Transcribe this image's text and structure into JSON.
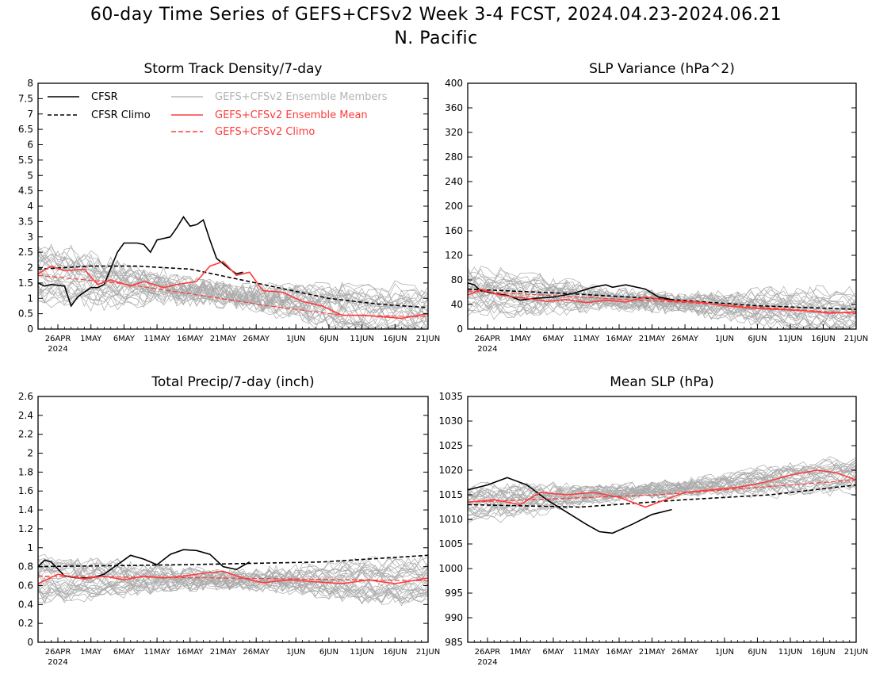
{
  "figure": {
    "title_line1": "60-day Time Series of GEFS+CFSv2 Week 3-4 FCST, 2024.04.23-2024.06.21",
    "title_line2": "N. Pacific",
    "x_axis": {
      "start_date": "2024-04-23",
      "end_date": "2024-06-21",
      "tick_labels": [
        "26APR",
        "1MAY",
        "6MAY",
        "11MAY",
        "16MAY",
        "21MAY",
        "26MAY",
        "1JUN",
        "6JUN",
        "11JUN",
        "16JUN",
        "21JUN"
      ],
      "tick_dates": [
        "2024-04-26",
        "2024-05-01",
        "2024-05-06",
        "2024-05-11",
        "2024-05-16",
        "2024-05-21",
        "2024-05-26",
        "2024-06-01",
        "2024-06-06",
        "2024-06-11",
        "2024-06-16",
        "2024-06-21"
      ],
      "year_label": "2024"
    },
    "legend": {
      "cfsr": "CFSR",
      "cfsr_climo": "CFSR Climo",
      "members": "GEFS+CFSv2 Ensemble Members",
      "ens_mean": "GEFS+CFSv2 Ensemble Mean",
      "gefs_climo": "GEFS+CFSv2 Climo"
    },
    "colors": {
      "cfsr": "#000000",
      "members": "#aaaaaa",
      "ens_mean": "#ff3b3b",
      "member_legend_text": "#b4b4b4"
    }
  },
  "chart_data": [
    {
      "type": "line",
      "title": "Storm Track Density/7-day",
      "ylim": [
        0,
        8
      ],
      "yticks": [
        0,
        0.5,
        1,
        1.5,
        2,
        2.5,
        3,
        3.5,
        4,
        4.5,
        5,
        5.5,
        6,
        6.5,
        7,
        7.5,
        8
      ],
      "ytick_labels": [
        "0",
        "0.5",
        "1",
        "1.5",
        "2",
        "2.5",
        "3",
        "3.5",
        "4",
        "4.5",
        "5",
        "5.5",
        "6",
        "6.5",
        "7",
        "7.5",
        "8"
      ],
      "members": {
        "count": 30,
        "start": 1.8,
        "end": 0.4,
        "spread": 1.0
      },
      "series": [
        {
          "name": "CFSR",
          "x": [
            "2024-04-23",
            "2024-04-24",
            "2024-04-25",
            "2024-04-27",
            "2024-04-28",
            "2024-04-29",
            "2024-05-01",
            "2024-05-02",
            "2024-05-03",
            "2024-05-05",
            "2024-05-06",
            "2024-05-08",
            "2024-05-09",
            "2024-05-10",
            "2024-05-11",
            "2024-05-13",
            "2024-05-14",
            "2024-05-15",
            "2024-05-16",
            "2024-05-17",
            "2024-05-18",
            "2024-05-19",
            "2024-05-20",
            "2024-05-22",
            "2024-05-23",
            "2024-05-24"
          ],
          "y": [
            1.5,
            1.4,
            1.45,
            1.4,
            0.75,
            1.05,
            1.35,
            1.35,
            1.45,
            2.5,
            2.8,
            2.8,
            2.75,
            2.5,
            2.9,
            3.0,
            3.3,
            3.65,
            3.35,
            3.4,
            3.55,
            2.9,
            2.3,
            1.95,
            1.8,
            1.85
          ]
        },
        {
          "name": "CFSR Climo",
          "x": [
            "2024-04-23",
            "2024-05-01",
            "2024-05-08",
            "2024-05-16",
            "2024-05-26",
            "2024-06-06",
            "2024-06-14",
            "2024-06-21"
          ],
          "y": [
            1.95,
            2.05,
            2.05,
            1.95,
            1.5,
            1.0,
            0.8,
            0.7
          ]
        },
        {
          "name": "GEFS+CFSv2 Ensemble Mean",
          "x": [
            "2024-04-23",
            "2024-04-25",
            "2024-04-27",
            "2024-04-30",
            "2024-05-02",
            "2024-05-04",
            "2024-05-07",
            "2024-05-09",
            "2024-05-12",
            "2024-05-14",
            "2024-05-17",
            "2024-05-19",
            "2024-05-21",
            "2024-05-23",
            "2024-05-25",
            "2024-05-27",
            "2024-05-30",
            "2024-06-02",
            "2024-06-05",
            "2024-06-08",
            "2024-06-11",
            "2024-06-14",
            "2024-06-17",
            "2024-06-21"
          ],
          "y": [
            1.8,
            2.05,
            1.9,
            1.95,
            1.45,
            1.6,
            1.4,
            1.55,
            1.35,
            1.45,
            1.55,
            2.05,
            2.2,
            1.75,
            1.85,
            1.25,
            1.2,
            0.9,
            0.75,
            0.45,
            0.45,
            0.4,
            0.35,
            0.5
          ]
        },
        {
          "name": "GEFS+CFSv2 Climo",
          "x": [
            "2024-04-23",
            "2024-05-05",
            "2024-05-16",
            "2024-05-28",
            "2024-06-08",
            "2024-06-21"
          ],
          "y": [
            1.75,
            1.5,
            1.15,
            0.75,
            0.45,
            0.4
          ]
        }
      ],
      "show_legend": true,
      "grid": false
    },
    {
      "type": "line",
      "title": "SLP Variance (hPa^2)",
      "ylim": [
        0,
        400
      ],
      "yticks": [
        0,
        40,
        80,
        120,
        160,
        200,
        240,
        280,
        320,
        360,
        400
      ],
      "ytick_labels": [
        "0",
        "40",
        "80",
        "120",
        "160",
        "200",
        "240",
        "280",
        "320",
        "360",
        "400"
      ],
      "members": {
        "count": 30,
        "start": 62,
        "end": 25,
        "spread": 40
      },
      "series": [
        {
          "name": "CFSR",
          "x": [
            "2024-04-23",
            "2024-04-24",
            "2024-04-25",
            "2024-04-27",
            "2024-04-29",
            "2024-05-01",
            "2024-05-03",
            "2024-05-06",
            "2024-05-09",
            "2024-05-12",
            "2024-05-14",
            "2024-05-15",
            "2024-05-17",
            "2024-05-20",
            "2024-05-22",
            "2024-05-24"
          ],
          "y": [
            75,
            72,
            62,
            58,
            55,
            47,
            50,
            52,
            58,
            68,
            72,
            68,
            72,
            65,
            52,
            48
          ]
        },
        {
          "name": "CFSR Climo",
          "x": [
            "2024-04-23",
            "2024-05-08",
            "2024-05-24",
            "2024-06-06",
            "2024-06-21"
          ],
          "y": [
            65,
            58,
            48,
            38,
            32
          ]
        },
        {
          "name": "GEFS+CFSv2 Ensemble Mean",
          "x": [
            "2024-04-23",
            "2024-04-25",
            "2024-04-28",
            "2024-05-02",
            "2024-05-05",
            "2024-05-08",
            "2024-05-11",
            "2024-05-14",
            "2024-05-17",
            "2024-05-20",
            "2024-05-24",
            "2024-05-28",
            "2024-06-01",
            "2024-06-05",
            "2024-06-09",
            "2024-06-13",
            "2024-06-17",
            "2024-06-21"
          ],
          "y": [
            55,
            65,
            55,
            50,
            45,
            48,
            43,
            47,
            44,
            52,
            46,
            44,
            38,
            34,
            32,
            30,
            26,
            28
          ]
        },
        {
          "name": "GEFS+CFSv2 Climo",
          "x": [
            "2024-04-23",
            "2024-05-10",
            "2024-05-28",
            "2024-06-21"
          ],
          "y": [
            62,
            52,
            42,
            25
          ]
        }
      ],
      "show_legend": false,
      "grid": false
    },
    {
      "type": "line",
      "title": "Total Precip/7-day (inch)",
      "ylim": [
        0,
        2.6
      ],
      "yticks": [
        0,
        0.2,
        0.4,
        0.6,
        0.8,
        1,
        1.2,
        1.4,
        1.6,
        1.8,
        2,
        2.2,
        2.4,
        2.6
      ],
      "ytick_labels": [
        "0",
        "0.2",
        "0.4",
        "0.6",
        "0.8",
        "1",
        "1.2",
        "1.4",
        "1.6",
        "1.8",
        "2",
        "2.2",
        "2.4",
        "2.6"
      ],
      "members": {
        "count": 30,
        "start": 0.68,
        "end": 0.65,
        "spread": 0.25
      },
      "series": [
        {
          "name": "CFSR",
          "x": [
            "2024-04-23",
            "2024-04-24",
            "2024-04-25",
            "2024-04-27",
            "2024-04-29",
            "2024-05-01",
            "2024-05-03",
            "2024-05-05",
            "2024-05-07",
            "2024-05-09",
            "2024-05-11",
            "2024-05-13",
            "2024-05-15",
            "2024-05-17",
            "2024-05-19",
            "2024-05-21",
            "2024-05-23",
            "2024-05-25"
          ],
          "y": [
            0.8,
            0.87,
            0.85,
            0.7,
            0.68,
            0.68,
            0.72,
            0.82,
            0.92,
            0.88,
            0.82,
            0.93,
            0.98,
            0.97,
            0.93,
            0.8,
            0.77,
            0.85
          ]
        },
        {
          "name": "CFSR Climo",
          "x": [
            "2024-04-23",
            "2024-05-15",
            "2024-06-05",
            "2024-06-21"
          ],
          "y": [
            0.8,
            0.82,
            0.85,
            0.92
          ]
        },
        {
          "name": "GEFS+CFSv2 Ensemble Mean",
          "x": [
            "2024-04-23",
            "2024-04-26",
            "2024-04-30",
            "2024-05-03",
            "2024-05-06",
            "2024-05-09",
            "2024-05-12",
            "2024-05-15",
            "2024-05-18",
            "2024-05-21",
            "2024-05-24",
            "2024-05-27",
            "2024-05-31",
            "2024-06-04",
            "2024-06-08",
            "2024-06-12",
            "2024-06-16",
            "2024-06-21"
          ],
          "y": [
            0.62,
            0.72,
            0.67,
            0.7,
            0.66,
            0.7,
            0.68,
            0.7,
            0.73,
            0.75,
            0.68,
            0.63,
            0.66,
            0.64,
            0.62,
            0.66,
            0.62,
            0.68
          ]
        },
        {
          "name": "GEFS+CFSv2 Climo",
          "x": [
            "2024-04-23",
            "2024-05-20",
            "2024-06-21"
          ],
          "y": [
            0.7,
            0.68,
            0.65
          ]
        }
      ],
      "show_legend": false,
      "grid": false
    },
    {
      "type": "line",
      "title": "Mean SLP (hPa)",
      "ylim": [
        985,
        1035
      ],
      "yticks": [
        985,
        990,
        995,
        1000,
        1005,
        1010,
        1015,
        1020,
        1025,
        1030,
        1035
      ],
      "ytick_labels": [
        "985",
        "990",
        "995",
        "1000",
        "1005",
        "1010",
        "1015",
        "1020",
        "1025",
        "1030",
        "1035"
      ],
      "members": {
        "count": 30,
        "start": 1013,
        "end": 1019,
        "spread": 4
      },
      "series": [
        {
          "name": "CFSR",
          "x": [
            "2024-04-23",
            "2024-04-26",
            "2024-04-29",
            "2024-05-02",
            "2024-05-05",
            "2024-05-08",
            "2024-05-11",
            "2024-05-13",
            "2024-05-15",
            "2024-05-18",
            "2024-05-21",
            "2024-05-24"
          ],
          "y": [
            1016,
            1017,
            1018.5,
            1017,
            1014,
            1011.5,
            1009,
            1007.5,
            1007.2,
            1009,
            1011,
            1012
          ]
        },
        {
          "name": "CFSR Climo",
          "x": [
            "2024-04-23",
            "2024-05-10",
            "2024-05-26",
            "2024-06-08",
            "2024-06-21"
          ],
          "y": [
            1013,
            1012.5,
            1014,
            1015,
            1017
          ]
        },
        {
          "name": "GEFS+CFSv2 Ensemble Mean",
          "x": [
            "2024-04-23",
            "2024-04-27",
            "2024-05-01",
            "2024-05-04",
            "2024-05-08",
            "2024-05-12",
            "2024-05-16",
            "2024-05-20",
            "2024-05-23",
            "2024-05-26",
            "2024-05-30",
            "2024-06-03",
            "2024-06-07",
            "2024-06-11",
            "2024-06-15",
            "2024-06-18",
            "2024-06-21"
          ],
          "y": [
            1013.5,
            1014,
            1013,
            1015.5,
            1015,
            1015.5,
            1014.5,
            1012.5,
            1014,
            1015.5,
            1016,
            1016.5,
            1017.5,
            1019,
            1020,
            1019.5,
            1018
          ]
        },
        {
          "name": "GEFS+CFSv2 Climo",
          "x": [
            "2024-04-23",
            "2024-05-22",
            "2024-06-21"
          ],
          "y": [
            1013.5,
            1015,
            1018
          ]
        }
      ],
      "show_legend": false,
      "grid": false
    }
  ]
}
